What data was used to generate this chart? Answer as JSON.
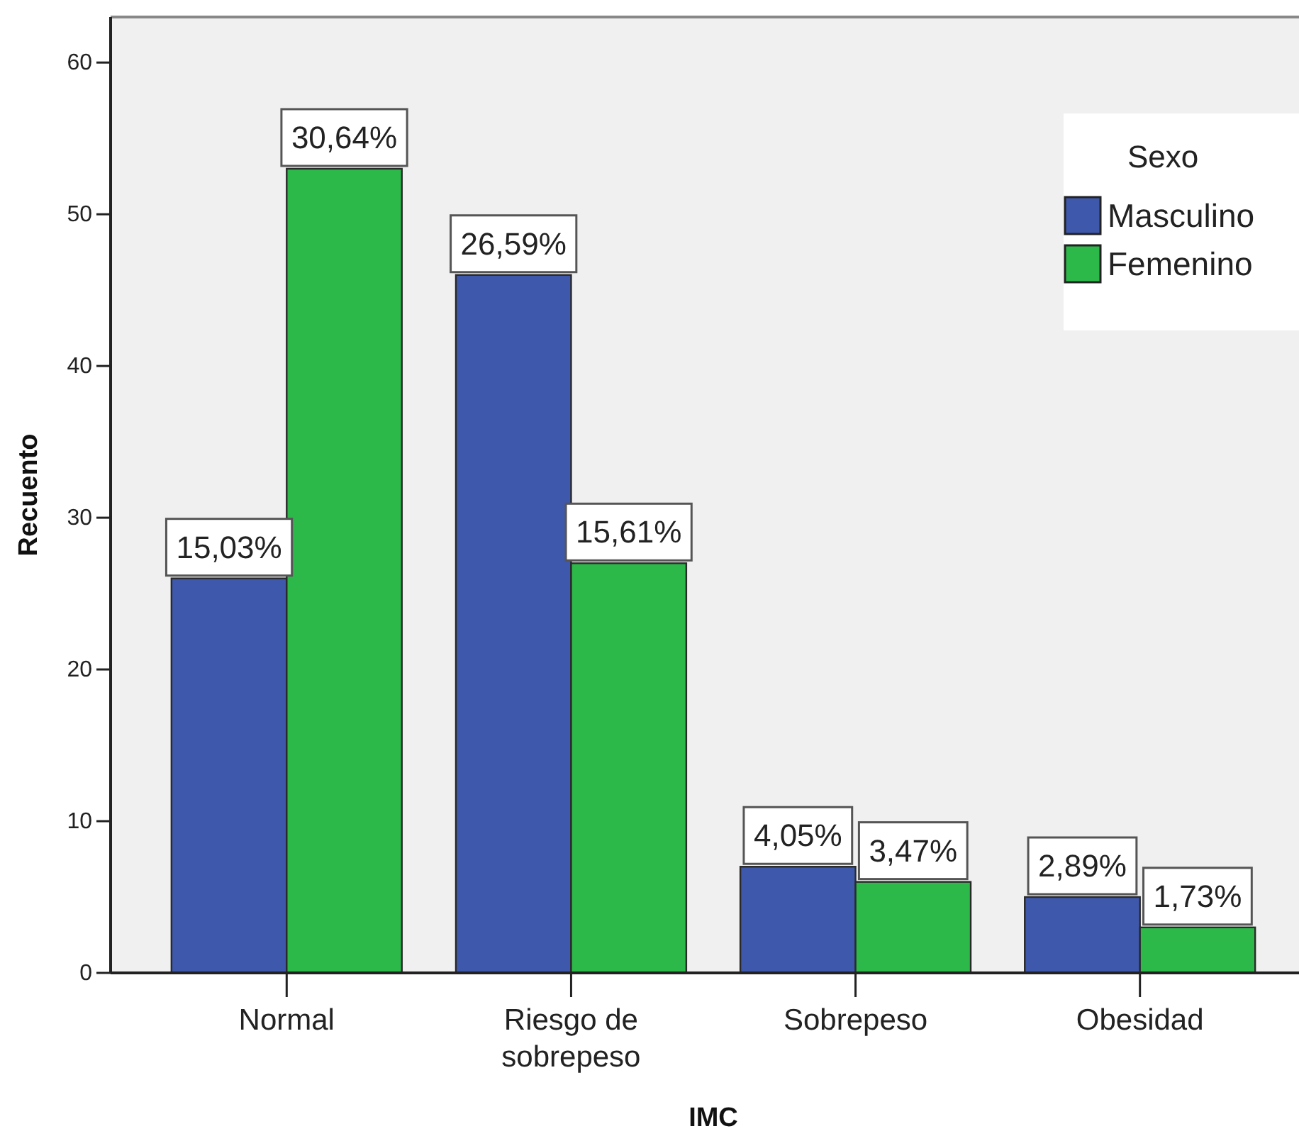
{
  "chart_data": {
    "type": "bar",
    "xlabel": "IMC",
    "ylabel": "Recuento",
    "legend_title": "Sexo",
    "legend": "top right",
    "categories": [
      "Normal",
      "Riesgo de sobrepeso",
      "Sobrepeso",
      "Obesidad"
    ],
    "series": [
      {
        "name": "Masculino",
        "color": "#3e58ac",
        "values": [
          26,
          46,
          7,
          5
        ]
      },
      {
        "name": "Femenino",
        "color": "#2db84a",
        "values": [
          53,
          27,
          6,
          3
        ]
      }
    ],
    "annotations": [
      {
        "text": "15,03%",
        "x": "Normal",
        "y": 26
      },
      {
        "text": "26,59%",
        "x": "Riesgo de sobrepeso",
        "y": 46
      },
      {
        "text": "4,05%",
        "x": "Sobrepeso",
        "y": 7
      },
      {
        "text": "2,89%",
        "x": "Obesidad",
        "y": 5
      },
      {
        "text": "30,64%",
        "x": "Normal",
        "y": 53
      },
      {
        "text": "15,61%",
        "x": "Riesgo de sobrepeso",
        "y": 27
      },
      {
        "text": "3,47%",
        "x": "Sobrepeso",
        "y": 6
      },
      {
        "text": "1,73%",
        "x": "Obesidad",
        "y": 3
      }
    ],
    "ylim": [
      0,
      63
    ],
    "yticks": [
      0,
      10,
      20,
      30,
      40,
      50,
      60
    ]
  }
}
